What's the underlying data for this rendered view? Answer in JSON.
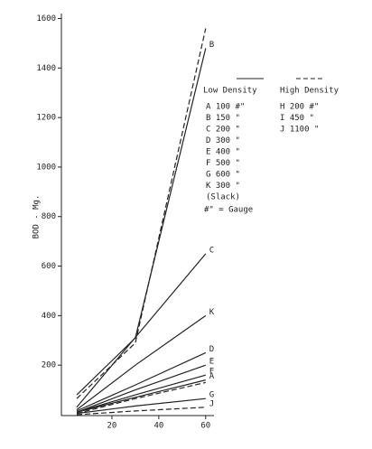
{
  "chart_data": {
    "type": "line",
    "y_label": "BOD - Mg.",
    "x": [
      5,
      30,
      60
    ],
    "xlim": [
      0,
      62
    ],
    "xticks": [
      20,
      40,
      60
    ],
    "ylim": [
      0,
      1620
    ],
    "yticks": [
      200,
      400,
      600,
      800,
      1000,
      1200,
      1400,
      1600
    ],
    "series": [
      {
        "name": "B",
        "style": "solid",
        "color": "#222",
        "values": [
          80,
          310,
          1480
        ],
        "end_label": "B"
      },
      {
        "name": "H",
        "style": "dashed",
        "color": "#222",
        "values": [
          65,
          290,
          1560
        ]
      },
      {
        "name": "C",
        "style": "solid",
        "color": "#222",
        "values": [
          30,
          312,
          650
        ],
        "end_label": "C"
      },
      {
        "name": "K",
        "style": "solid",
        "color": "#222",
        "values": [
          20,
          200,
          400
        ],
        "end_label": "K"
      },
      {
        "name": "D",
        "style": "solid",
        "color": "#222",
        "values": [
          15,
          120,
          250
        ],
        "end_label": "D"
      },
      {
        "name": "E",
        "style": "solid",
        "color": "#222",
        "values": [
          10,
          100,
          200
        ],
        "end_label": "E"
      },
      {
        "name": "F",
        "style": "solid",
        "color": "#222",
        "values": [
          10,
          80,
          160
        ],
        "end_label": "F"
      },
      {
        "name": "A",
        "style": "solid",
        "color": "#222",
        "values": [
          10,
          70,
          140
        ],
        "end_label": "A"
      },
      {
        "name": "I",
        "style": "dashed",
        "color": "#222",
        "values": [
          5,
          65,
          130
        ]
      },
      {
        "name": "G",
        "style": "solid",
        "color": "#222",
        "values": [
          5,
          35,
          65
        ],
        "end_label": "G"
      },
      {
        "name": "J",
        "style": "dashed",
        "color": "#222",
        "values": [
          0,
          15,
          30
        ],
        "end_label": "J"
      }
    ],
    "legend_low": {
      "title": "Low Density",
      "entries": [
        "A  100 #\"",
        "B  150 \"",
        "C  200 \"",
        "D  300 \"",
        "E  400 \"",
        "F  500 \"",
        "G  600 \"",
        "K  300 \"",
        "(Slack)"
      ]
    },
    "legend_high": {
      "title": "High Density",
      "entries": [
        "H  200 #\"",
        "I  450 \"",
        "J  1100 \""
      ]
    },
    "note": "#\" = Gauge"
  }
}
